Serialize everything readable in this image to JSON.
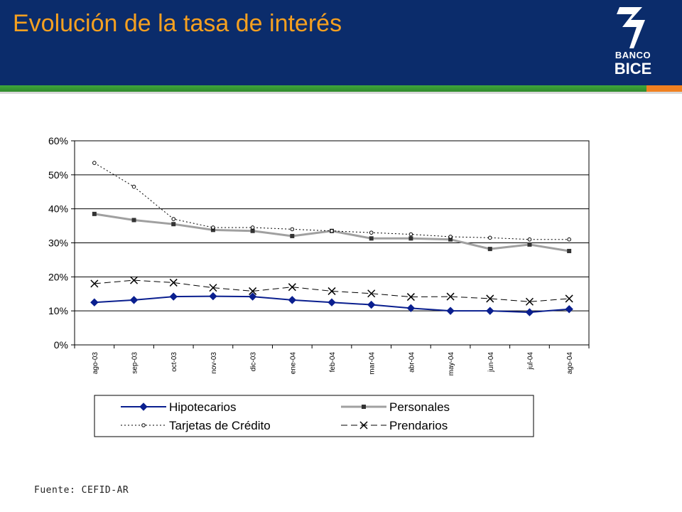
{
  "title": "Evolución de la tasa de interés",
  "logo": {
    "line1": "BANCO",
    "line2": "BICE"
  },
  "source": "Fuente: CEFID-AR",
  "colors": {
    "header_bg": "#0b2c6b",
    "title": "#f5a020",
    "stripe_green": "#3fa73a",
    "stripe_orange": "#f08020"
  },
  "chart_data": {
    "type": "line",
    "categories": [
      "ago-03",
      "sep-03",
      "oct-03",
      "nov-03",
      "dic-03",
      "ene-04",
      "feb-04",
      "mar-04",
      "abr-04",
      "may-04",
      "jun-04",
      "jul-04",
      "ago-04"
    ],
    "ylim": [
      0,
      60
    ],
    "yticks": [
      "0%",
      "10%",
      "20%",
      "30%",
      "40%",
      "50%",
      "60%"
    ],
    "grid": true,
    "legend_position": "bottom",
    "series": [
      {
        "name": "Hipotecarios",
        "color": "#0a1f8f",
        "style": "solid",
        "marker": "diamond",
        "values": [
          12.5,
          13.2,
          14.2,
          14.3,
          14.2,
          13.2,
          12.5,
          11.8,
          10.8,
          10.0,
          10.0,
          9.6,
          10.5
        ]
      },
      {
        "name": "Personales",
        "color": "#999999",
        "style": "solid",
        "marker": "square",
        "values": [
          38.5,
          36.7,
          35.5,
          33.8,
          33.5,
          32.0,
          33.5,
          31.3,
          31.3,
          31.0,
          28.2,
          29.5,
          27.6
        ]
      },
      {
        "name": "Tarjetas de Crédito",
        "color": "#000000",
        "style": "dotted",
        "marker": "circle",
        "values": [
          53.5,
          46.5,
          37.0,
          34.5,
          34.5,
          34.0,
          33.5,
          33.0,
          32.5,
          31.8,
          31.5,
          31.0,
          31.0
        ]
      },
      {
        "name": "Prendarios",
        "color": "#000000",
        "style": "dashed",
        "marker": "x",
        "values": [
          18.0,
          19.0,
          18.3,
          16.8,
          15.8,
          17.0,
          15.8,
          15.1,
          14.1,
          14.2,
          13.6,
          12.7,
          13.6
        ]
      }
    ]
  }
}
